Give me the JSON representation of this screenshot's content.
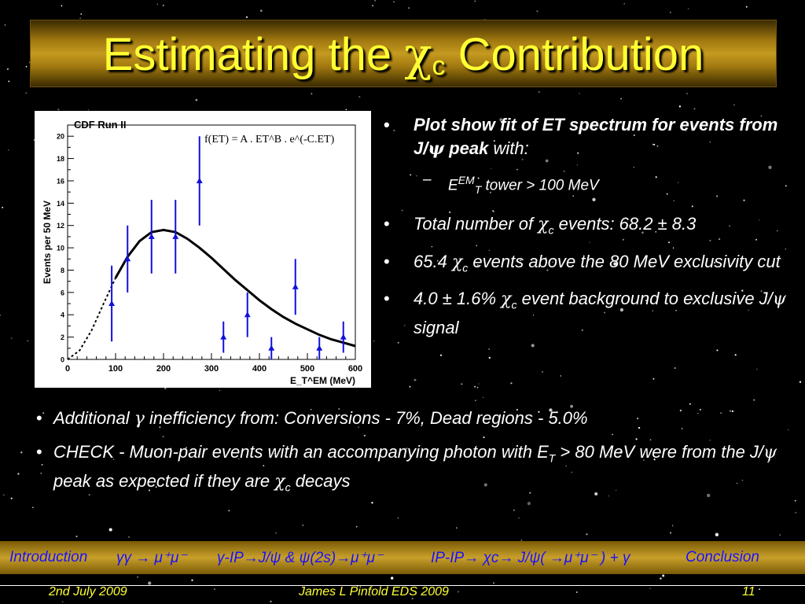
{
  "title": {
    "main": "Estimating the ",
    "greek": "χ",
    "sub": "c",
    "tail": " Contribution"
  },
  "bullets": [
    {
      "pre": "Plot show fit of ET spectrum for events  from J/",
      "greek": "ψ",
      "post": " peak",
      "rest": "  with:"
    },
    {
      "sub_text_a": "E",
      "sub_text_sup": "EM",
      "sub_text_sub": "T",
      "sub_text_rest": "  tower > 100 MeV"
    },
    {
      "pre": "Total number of ",
      "greek": "χ",
      "sub": "c",
      "post": " events: 68.2 ± 8.3"
    },
    {
      "pre": "65.4 ",
      "greek": "χ",
      "sub": "c",
      "post": " events above the 80 MeV exclusivity cut"
    },
    {
      "pre": "4.0 ± 1.6% ",
      "greek": "χ",
      "sub": "c",
      "post": " event background to exclusive J/",
      "greek2": "ψ",
      "post2": " signal"
    }
  ],
  "wide_bullets": [
    {
      "pre": "Additional ",
      "greek": "γ",
      "post": " inefficiency from: Conversions - 7%, Dead regions -   5.0%"
    },
    {
      "pre": "CHECK - Muon-pair events with an accompanying photon with E",
      "sub": "T",
      "mid": " > 80 MeV were  from the J/",
      "greek": "ψ",
      "mid2": " peak as expected if they are ",
      "greek2": "χ",
      "sub2": "c",
      "post": " decays"
    }
  ],
  "nav": {
    "introduction": "Introduction",
    "item2": "γγ → μ⁺μ⁻",
    "item3": "γ-IP→J/ψ & ψ(2s)→μ⁺μ⁻",
    "item4": "IP-IP→ χc→ J/ψ( →μ⁺μ⁻ ) + γ",
    "conclusion": "Conclusion"
  },
  "footer": {
    "date": "2nd July 2009",
    "author": "James L Pinfold     EDS 2009",
    "page": "11"
  },
  "colors": {
    "title_text": "#ffff33",
    "nav_text": "#1a10ff",
    "data_points": "#1010dd",
    "fit_curve": "#000000"
  },
  "chart_data": {
    "type": "scatter",
    "title": "CDF Run II",
    "formula": "f(ET) = A . ET^B . e^(-C.ET)",
    "xlabel": "E_T^EM (MeV)",
    "ylabel": "Events per 50 MeV",
    "xlim": [
      0,
      600
    ],
    "ylim": [
      0,
      21
    ],
    "xticks": [
      0,
      100,
      200,
      300,
      400,
      500,
      600
    ],
    "yticks": [
      0,
      2,
      4,
      6,
      8,
      10,
      12,
      14,
      16,
      18,
      20
    ],
    "grid": false,
    "series": [
      {
        "style": "points-with-errorbars",
        "x": [
          92,
          125,
          175,
          225,
          275,
          325,
          375,
          425,
          475,
          525,
          575
        ],
        "y": [
          5,
          9,
          11,
          11,
          16,
          2,
          4,
          1,
          6.5,
          1,
          2
        ],
        "yerr": [
          3.4,
          3.0,
          3.3,
          3.3,
          4.0,
          1.4,
          2.0,
          1.0,
          2.5,
          1.0,
          1.4
        ]
      },
      {
        "style": "fit-curve",
        "x": [
          0,
          25,
          50,
          75,
          100,
          125,
          150,
          175,
          200,
          225,
          250,
          275,
          300,
          325,
          350,
          375,
          400,
          425,
          450,
          475,
          500,
          525,
          550,
          575,
          600
        ],
        "y": [
          0,
          0.8,
          2.6,
          5.0,
          7.3,
          9.2,
          10.6,
          11.4,
          11.6,
          11.4,
          10.8,
          10.0,
          9.1,
          8.1,
          7.1,
          6.2,
          5.3,
          4.5,
          3.8,
          3.2,
          2.7,
          2.2,
          1.8,
          1.5,
          1.2
        ],
        "dashed_below_x": 100
      }
    ]
  }
}
